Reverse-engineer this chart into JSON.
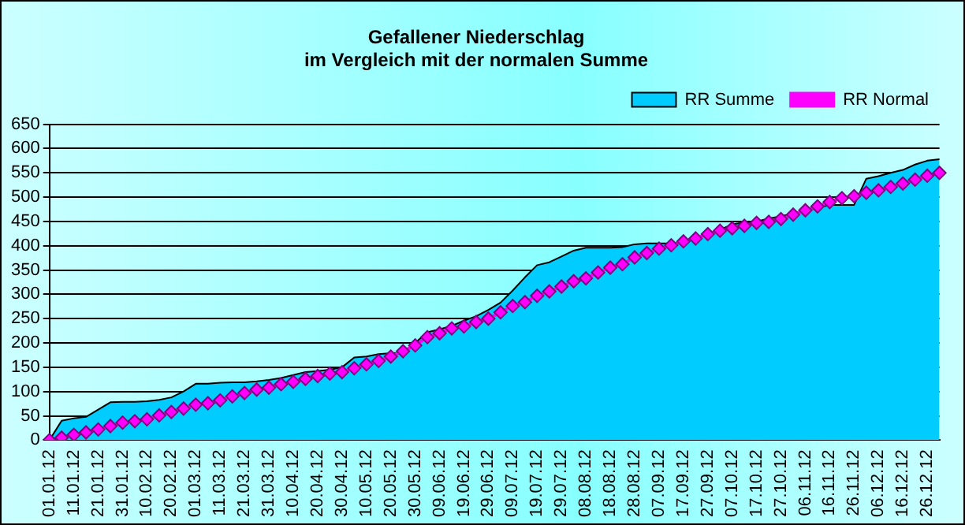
{
  "chart_data": {
    "type": "line",
    "title": "Gefallener Niederschlag\nim Vergleich mit der normalen Summe",
    "categories": [
      "01.01.12",
      null,
      "11.01.12",
      null,
      "21.01.12",
      null,
      "31.01.12",
      null,
      "10.02.12",
      null,
      "20.02.12",
      null,
      "01.03.12",
      null,
      "11.03.12",
      null,
      "21.03.12",
      null,
      "31.03.12",
      null,
      "10.04.12",
      null,
      "20.04.12",
      null,
      "30.04.12",
      null,
      "10.05.12",
      null,
      "20.05.12",
      null,
      "30.05.12",
      null,
      "09.06.12",
      null,
      "19.06.12",
      null,
      "29.06.12",
      null,
      "09.07.12",
      null,
      "19.07.12",
      null,
      "29.07.12",
      null,
      "08.08.12",
      null,
      "18.08.12",
      null,
      "28.08.12",
      null,
      "07.09.12",
      null,
      "17.09.12",
      null,
      "27.09.12",
      null,
      "07.10.12",
      null,
      "17.10.12",
      null,
      "27.10.12",
      null,
      "06.11.12",
      null,
      "16.11.12",
      null,
      "26.11.12",
      null,
      "06.12.12",
      null,
      "16.12.12",
      null,
      "26.12.12",
      null
    ],
    "series": [
      {
        "name": "RR Summe",
        "type": "area",
        "color": "#00ccff",
        "marker": "none",
        "values": [
          0,
          40,
          45,
          48,
          63,
          78,
          79,
          79,
          80,
          83,
          88,
          100,
          116,
          116,
          118,
          119,
          119,
          121,
          124,
          128,
          134,
          140,
          142,
          145,
          150,
          170,
          172,
          177,
          179,
          180,
          200,
          222,
          228,
          235,
          246,
          255,
          268,
          283,
          308,
          335,
          360,
          366,
          378,
          390,
          396,
          396,
          396,
          397,
          403,
          405,
          405,
          405,
          408,
          415,
          425,
          433,
          444,
          448,
          450,
          456,
          461,
          466,
          471,
          478,
          484,
          484,
          484,
          538,
          543,
          550,
          556,
          567,
          575,
          578
        ]
      },
      {
        "name": "RR Normal",
        "color": "#ff00ff",
        "marker": "diamond",
        "values": [
          0,
          5,
          11,
          16,
          22,
          29,
          36,
          39,
          43,
          51,
          58,
          65,
          73,
          76,
          82,
          90,
          97,
          104,
          108,
          115,
          120,
          126,
          132,
          137,
          140,
          148,
          156,
          163,
          172,
          183,
          195,
          212,
          220,
          230,
          234,
          243,
          250,
          263,
          276,
          284,
          297,
          306,
          316,
          327,
          333,
          345,
          355,
          362,
          376,
          385,
          394,
          401,
          409,
          415,
          424,
          431,
          436,
          441,
          447,
          449,
          455,
          464,
          473,
          481,
          490,
          498,
          502,
          509,
          514,
          521,
          528,
          536,
          544,
          550
        ]
      }
    ],
    "ylim": [
      0,
      650
    ],
    "yticks": [
      0,
      50,
      100,
      150,
      200,
      250,
      300,
      350,
      400,
      450,
      500,
      550,
      600,
      650
    ],
    "grid": "y",
    "legend": "top right"
  }
}
